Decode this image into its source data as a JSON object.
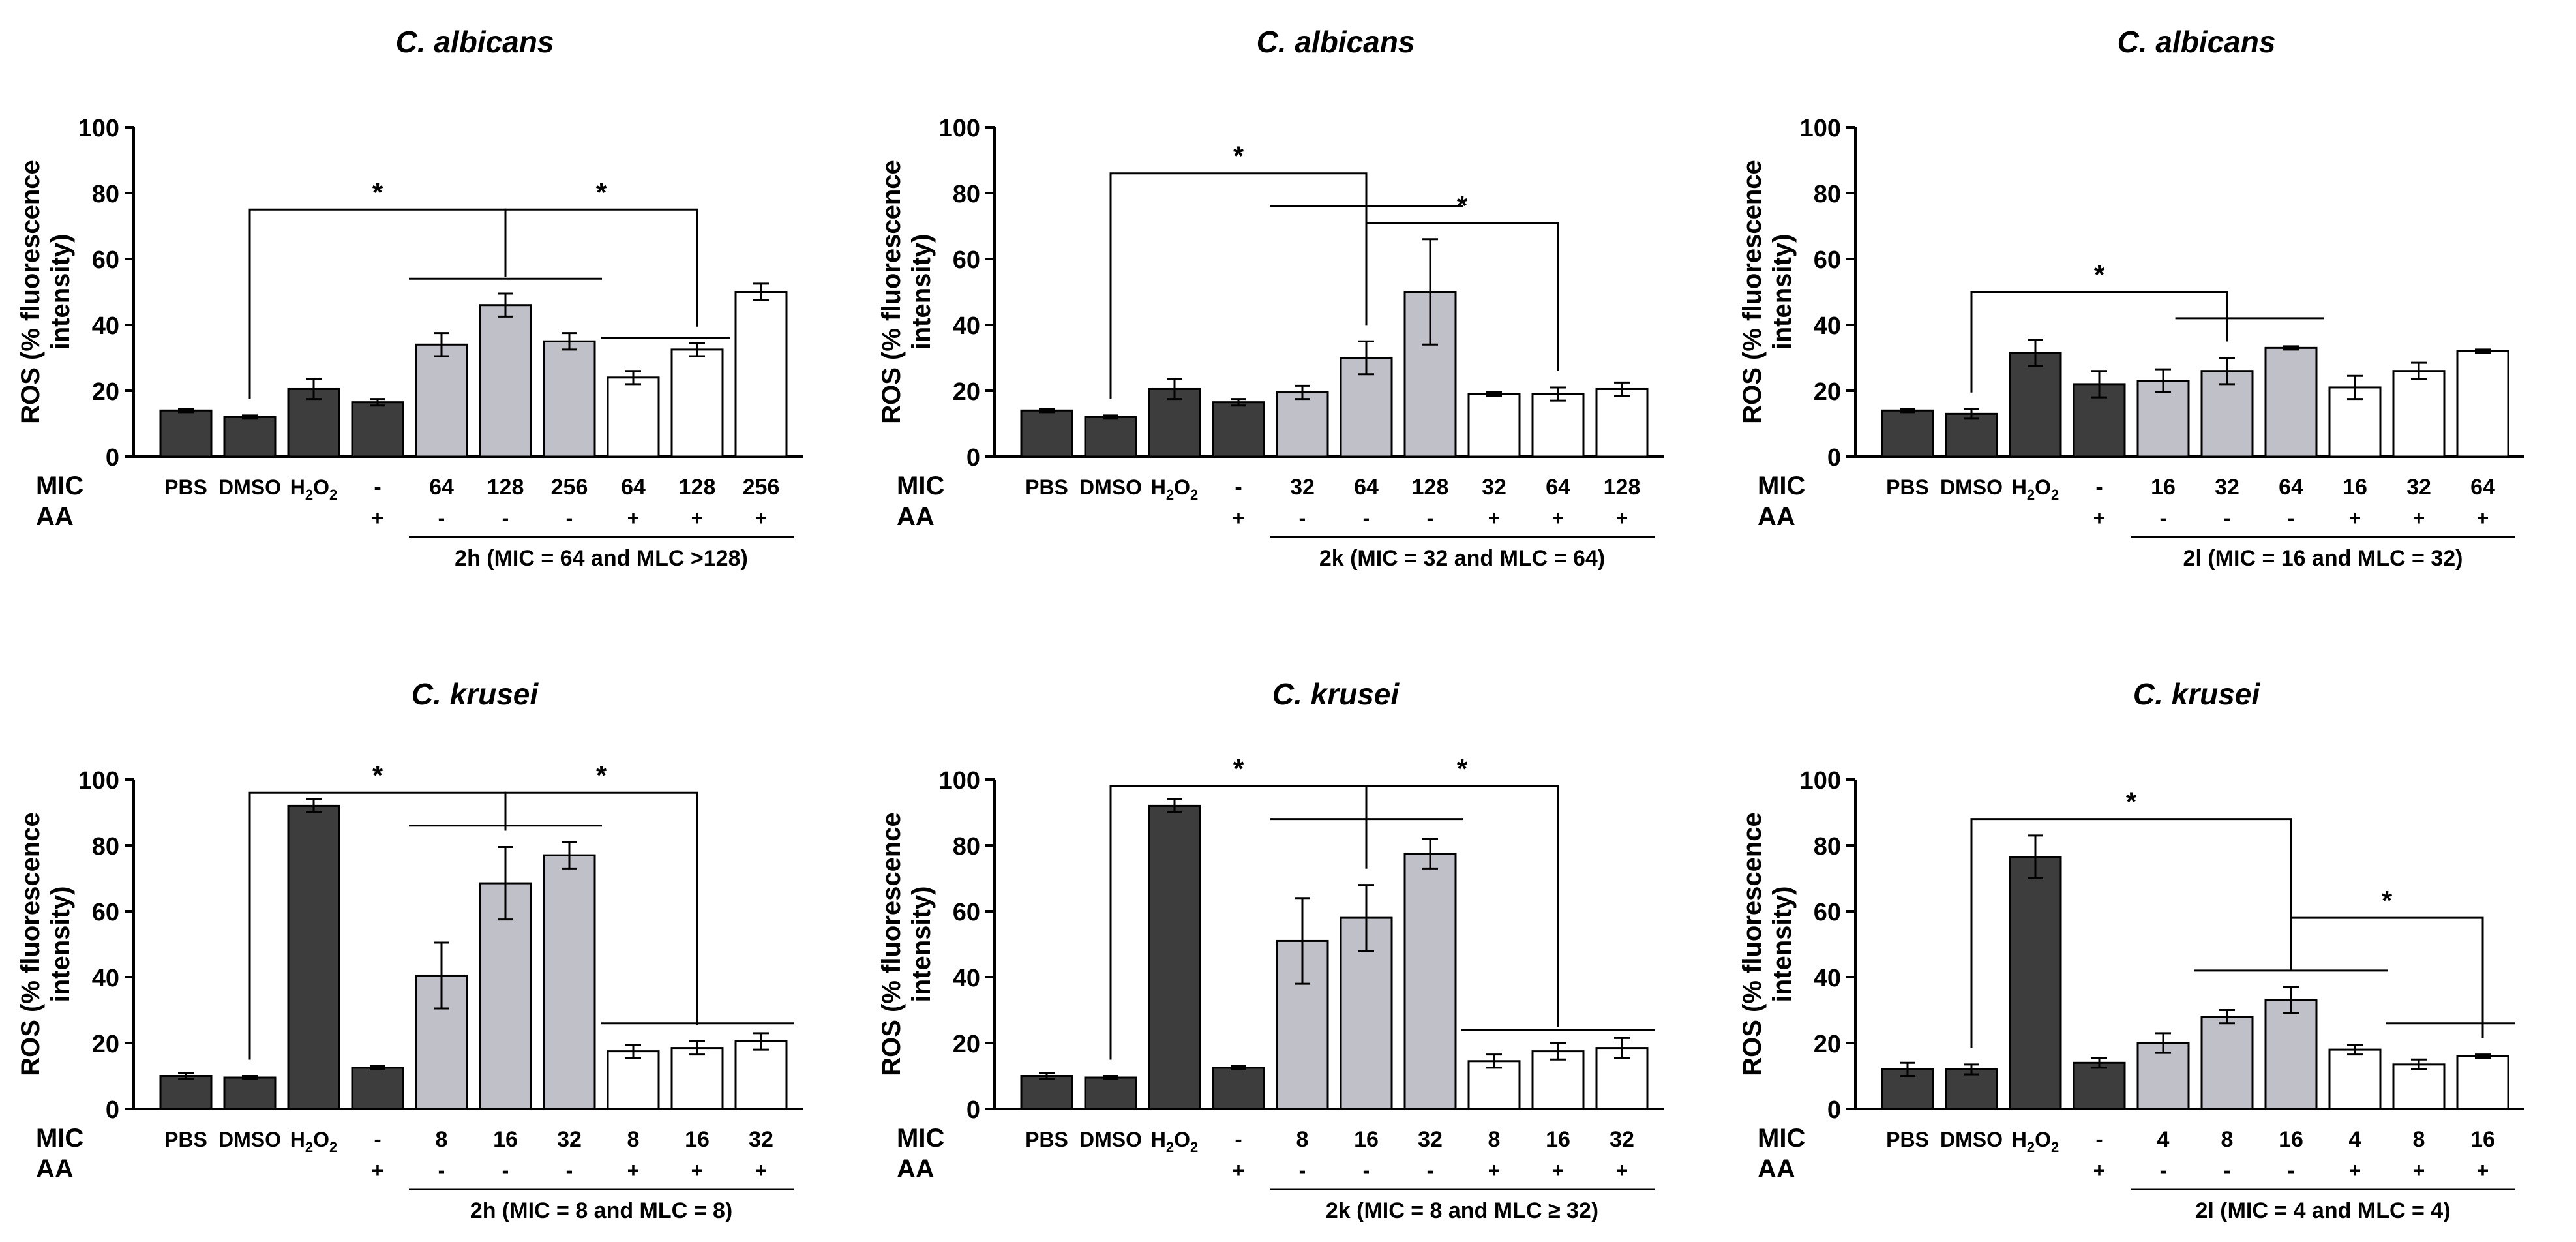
{
  "figure": {
    "ylabel_line1": "ROS (% fluorescence",
    "ylabel_line2": "intensity)",
    "row_label_mic": "MIC",
    "row_label_aa": "AA",
    "control_labels": [
      "PBS",
      "DMSO",
      "H2O2",
      "-"
    ],
    "h2o2_label": {
      "main": "H",
      "sub1": "2",
      "mid": "O",
      "sub2": "2"
    },
    "significance_mark": "*",
    "colors": {
      "control": "#3d3d3d",
      "treated": "#bfc0c8",
      "aa": "#ffffff",
      "axis": "#000000"
    }
  },
  "chart_data": [
    {
      "type": "bar",
      "title": "C. albicans",
      "compound_label": "2h (MIC = 64 and MLC >128)",
      "categories": [
        "PBS",
        "DMSO",
        "H2O2",
        "-",
        "64",
        "128",
        "256",
        "64",
        "128",
        "256"
      ],
      "mic": [
        "",
        "",
        "",
        "-",
        "64",
        "128",
        "256",
        "64",
        "128",
        "256"
      ],
      "aa": [
        "",
        "",
        "",
        "+",
        "-",
        "-",
        "-",
        "+",
        "+",
        "+"
      ],
      "values": [
        14,
        12,
        20.5,
        16.5,
        34,
        46,
        35,
        24,
        32.5,
        50
      ],
      "errors": [
        0.5,
        0.5,
        3,
        1,
        3.5,
        3.5,
        2.5,
        2,
        2,
        2.5
      ],
      "groups": [
        "control",
        "control",
        "control",
        "control",
        "treated",
        "treated",
        "treated",
        "aa",
        "aa",
        "aa"
      ],
      "yticks": [
        0,
        20,
        40,
        60,
        80,
        100
      ],
      "ylim": [
        0,
        100
      ],
      "significance": [
        {
          "type": "bracket",
          "from": 1,
          "to": 5,
          "y": 75,
          "label": "*"
        },
        {
          "type": "bracket",
          "from": 5,
          "to": 8,
          "y": 75,
          "label": "*"
        },
        {
          "type": "line",
          "from": 4,
          "to": 6,
          "y": 54
        },
        {
          "type": "line",
          "from": 7,
          "to": 8,
          "y": 36
        }
      ]
    },
    {
      "type": "bar",
      "title": "C. albicans",
      "compound_label": "2k (MIC = 32 and MLC = 64)",
      "categories": [
        "PBS",
        "DMSO",
        "H2O2",
        "-",
        "32",
        "64",
        "128",
        "32",
        "64",
        "128"
      ],
      "mic": [
        "",
        "",
        "",
        "-",
        "32",
        "64",
        "128",
        "32",
        "64",
        "128"
      ],
      "aa": [
        "",
        "",
        "",
        "+",
        "-",
        "-",
        "-",
        "+",
        "+",
        "+"
      ],
      "values": [
        14,
        12,
        20.5,
        16.5,
        19.5,
        30,
        50,
        19,
        19,
        20.5
      ],
      "errors": [
        0.5,
        0.5,
        3,
        1,
        2,
        5,
        16,
        0.5,
        2,
        2
      ],
      "groups": [
        "control",
        "control",
        "control",
        "control",
        "treated",
        "treated",
        "treated",
        "aa",
        "aa",
        "aa"
      ],
      "yticks": [
        0,
        20,
        40,
        60,
        80,
        100
      ],
      "ylim": [
        0,
        100
      ],
      "significance": [
        {
          "type": "bracket",
          "from": 1,
          "to": 5,
          "y": 86,
          "label": "*"
        },
        {
          "type": "line",
          "from": 4,
          "to": 6,
          "y": 76
        },
        {
          "type": "bracket",
          "from": 5,
          "to": 8,
          "y": 71,
          "label": "*"
        }
      ]
    },
    {
      "type": "bar",
      "title": "C. albicans",
      "compound_label": "2l (MIC = 16 and MLC = 32)",
      "categories": [
        "PBS",
        "DMSO",
        "H2O2",
        "-",
        "16",
        "32",
        "64",
        "16",
        "32",
        "64"
      ],
      "mic": [
        "",
        "",
        "",
        "-",
        "16",
        "32",
        "64",
        "16",
        "32",
        "64"
      ],
      "aa": [
        "",
        "",
        "",
        "+",
        "-",
        "-",
        "-",
        "+",
        "+",
        "+"
      ],
      "values": [
        14,
        13,
        31.5,
        22,
        23,
        26,
        33,
        21,
        26,
        32
      ],
      "errors": [
        0.5,
        1.5,
        4,
        4,
        3.5,
        4,
        0.5,
        3.5,
        2.5,
        0.5
      ],
      "groups": [
        "control",
        "control",
        "control",
        "control",
        "treated",
        "treated",
        "treated",
        "aa",
        "aa",
        "aa"
      ],
      "yticks": [
        0,
        20,
        40,
        60,
        80,
        100
      ],
      "ylim": [
        0,
        100
      ],
      "significance": [
        {
          "type": "bracket",
          "from": 1,
          "to": 5,
          "y": 50,
          "label": "*"
        },
        {
          "type": "line",
          "from": 4.7,
          "to": 6,
          "y": 42
        }
      ]
    },
    {
      "type": "bar",
      "title": "C. krusei",
      "compound_label": "2h (MIC = 8 and MLC = 8)",
      "categories": [
        "PBS",
        "DMSO",
        "H2O2",
        "-",
        "8",
        "16",
        "32",
        "8",
        "16",
        "32"
      ],
      "mic": [
        "",
        "",
        "",
        "-",
        "8",
        "16",
        "32",
        "8",
        "16",
        "32"
      ],
      "aa": [
        "",
        "",
        "",
        "+",
        "-",
        "-",
        "-",
        "+",
        "+",
        "+"
      ],
      "values": [
        10,
        9.5,
        92,
        12.5,
        40.5,
        68.5,
        77,
        17.5,
        18.5,
        20.5
      ],
      "errors": [
        1,
        0.5,
        2,
        0.5,
        10,
        11,
        4,
        2,
        2,
        2.5
      ],
      "groups": [
        "control",
        "control",
        "control",
        "control",
        "treated",
        "treated",
        "treated",
        "aa",
        "aa",
        "aa"
      ],
      "yticks": [
        0,
        20,
        40,
        60,
        80,
        100
      ],
      "ylim": [
        0,
        100
      ],
      "significance": [
        {
          "type": "bracket",
          "from": 1,
          "to": 5,
          "y": 96,
          "label": "*"
        },
        {
          "type": "bracket",
          "from": 5,
          "to": 8,
          "y": 96,
          "label": "*"
        },
        {
          "type": "line",
          "from": 4,
          "to": 6,
          "y": 86
        },
        {
          "type": "line",
          "from": 7,
          "to": 9,
          "y": 26
        }
      ]
    },
    {
      "type": "bar",
      "title": "C. krusei",
      "compound_label": "2k (MIC = 8 and MLC ≥ 32)",
      "categories": [
        "PBS",
        "DMSO",
        "H2O2",
        "-",
        "8",
        "16",
        "32",
        "8",
        "16",
        "32"
      ],
      "mic": [
        "",
        "",
        "",
        "-",
        "8",
        "16",
        "32",
        "8",
        "16",
        "32"
      ],
      "aa": [
        "",
        "",
        "",
        "+",
        "-",
        "-",
        "-",
        "+",
        "+",
        "+"
      ],
      "values": [
        10,
        9.5,
        92,
        12.5,
        51,
        58,
        77.5,
        14.5,
        17.5,
        18.5
      ],
      "errors": [
        1,
        0.5,
        2,
        0.5,
        13,
        10,
        4.5,
        2,
        2.5,
        3
      ],
      "groups": [
        "control",
        "control",
        "control",
        "control",
        "treated",
        "treated",
        "treated",
        "aa",
        "aa",
        "aa"
      ],
      "yticks": [
        0,
        20,
        40,
        60,
        80,
        100
      ],
      "ylim": [
        0,
        100
      ],
      "significance": [
        {
          "type": "bracket",
          "from": 1,
          "to": 5,
          "y": 98,
          "label": "*"
        },
        {
          "type": "bracket",
          "from": 5,
          "to": 8,
          "y": 98,
          "label": "*"
        },
        {
          "type": "line",
          "from": 4,
          "to": 6,
          "y": 88
        },
        {
          "type": "line",
          "from": 7,
          "to": 9,
          "y": 24
        }
      ]
    },
    {
      "type": "bar",
      "title": "C. krusei",
      "compound_label": "2l (MIC = 4 and MLC = 4)",
      "categories": [
        "PBS",
        "DMSO",
        "H2O2",
        "-",
        "4",
        "8",
        "16",
        "4",
        "8",
        "16"
      ],
      "mic": [
        "",
        "",
        "",
        "-",
        "4",
        "8",
        "16",
        "4",
        "8",
        "16"
      ],
      "aa": [
        "",
        "",
        "",
        "+",
        "-",
        "-",
        "-",
        "+",
        "+",
        "+"
      ],
      "values": [
        12,
        12,
        76.5,
        14,
        20,
        28,
        33,
        18,
        13.5,
        16
      ],
      "errors": [
        2,
        1.5,
        6.5,
        1.5,
        3,
        2,
        4,
        1.5,
        1.5,
        0.5
      ],
      "groups": [
        "control",
        "control",
        "control",
        "control",
        "treated",
        "treated",
        "treated",
        "aa",
        "aa",
        "aa"
      ],
      "yticks": [
        0,
        20,
        40,
        60,
        80,
        100
      ],
      "ylim": [
        0,
        100
      ],
      "significance": [
        {
          "type": "bracket",
          "from": 1,
          "to": 6,
          "y": 88,
          "label": "*"
        },
        {
          "type": "line",
          "from": 5,
          "to": 7,
          "y": 42
        },
        {
          "type": "bracket",
          "from": 6,
          "to": 9,
          "y": 58,
          "label": "*"
        },
        {
          "type": "line",
          "from": 8,
          "to": 9,
          "y": 26
        }
      ]
    }
  ]
}
